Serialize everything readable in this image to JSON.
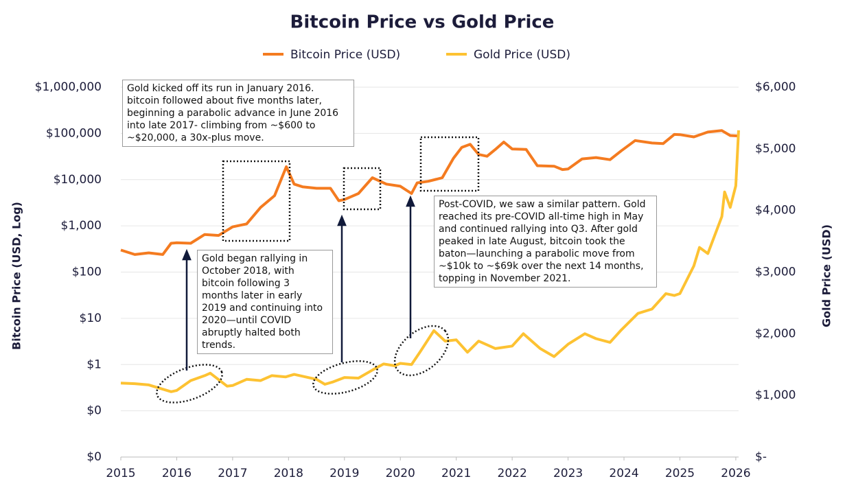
{
  "chart_data": {
    "type": "line",
    "title": "Bitcoin Price vs Gold Price",
    "y_label": "Bitcoin Price (USD, Log)",
    "y2_label": "Gold Price (USD)",
    "y_log": true,
    "grid": true,
    "xlim": [
      2015,
      2026.05
    ],
    "xticks": [
      2015,
      2016,
      2017,
      2018,
      2019,
      2020,
      2021,
      2022,
      2023,
      2024,
      2025,
      2026
    ],
    "ylim": [
      0.01,
      1000000
    ],
    "yticks": [
      {
        "value": 0.01,
        "label": "$0"
      },
      {
        "value": 0.1,
        "label": "$0"
      },
      {
        "value": 1,
        "label": "$1"
      },
      {
        "value": 10,
        "label": "$10"
      },
      {
        "value": 100,
        "label": "$100"
      },
      {
        "value": 1000,
        "label": "$1,000"
      },
      {
        "value": 10000,
        "label": "$10,000"
      },
      {
        "value": 100000,
        "label": "$100,000"
      },
      {
        "value": 1000000,
        "label": "$1,000,000"
      }
    ],
    "y2lim": [
      0,
      6000
    ],
    "y2ticks": [
      {
        "value": 0,
        "label": "$-"
      },
      {
        "value": 1000,
        "label": "$1,000"
      },
      {
        "value": 2000,
        "label": "$2,000"
      },
      {
        "value": 3000,
        "label": "$3,000"
      },
      {
        "value": 4000,
        "label": "$4,000"
      },
      {
        "value": 5000,
        "label": "$5,000"
      },
      {
        "value": 6000,
        "label": "$6,000"
      }
    ],
    "series": [
      {
        "name": "Bitcoin Price (USD)",
        "color": "#f47b20",
        "x": [
          2015.0,
          2015.25,
          2015.5,
          2015.75,
          2015.9,
          2016.0,
          2016.25,
          2016.5,
          2016.75,
          2017.0,
          2017.25,
          2017.5,
          2017.75,
          2017.96,
          2018.1,
          2018.25,
          2018.5,
          2018.75,
          2018.9,
          2019.0,
          2019.25,
          2019.5,
          2019.75,
          2020.0,
          2020.2,
          2020.3,
          2020.5,
          2020.75,
          2020.95,
          2021.1,
          2021.25,
          2021.4,
          2021.55,
          2021.7,
          2021.85,
          2022.0,
          2022.25,
          2022.45,
          2022.75,
          2022.9,
          2023.0,
          2023.25,
          2023.5,
          2023.75,
          2023.95,
          2024.2,
          2024.5,
          2024.7,
          2024.9,
          2025.0,
          2025.25,
          2025.5,
          2025.75,
          2025.9,
          2026.05
        ],
        "values": [
          300,
          240,
          260,
          240,
          420,
          430,
          420,
          650,
          620,
          950,
          1100,
          2500,
          4500,
          19000,
          8000,
          7000,
          6500,
          6500,
          3500,
          3700,
          5000,
          11000,
          8000,
          7200,
          5000,
          8500,
          9200,
          11000,
          29000,
          50000,
          58000,
          35000,
          32000,
          45000,
          65000,
          46000,
          45000,
          20000,
          19500,
          16500,
          17000,
          28000,
          30000,
          27000,
          42000,
          70000,
          62000,
          60000,
          95000,
          94000,
          84000,
          107000,
          115000,
          90000,
          88000
        ]
      },
      {
        "name": "Gold Price (USD)",
        "color": "#fdc232",
        "axis": "y2",
        "x": [
          2015.0,
          2015.25,
          2015.5,
          2015.9,
          2016.0,
          2016.25,
          2016.5,
          2016.6,
          2016.9,
          2017.0,
          2017.25,
          2017.5,
          2017.7,
          2017.95,
          2018.1,
          2018.5,
          2018.65,
          2018.8,
          2019.0,
          2019.25,
          2019.5,
          2019.7,
          2019.9,
          2020.0,
          2020.2,
          2020.35,
          2020.6,
          2020.8,
          2021.0,
          2021.2,
          2021.4,
          2021.7,
          2022.0,
          2022.2,
          2022.5,
          2022.75,
          2023.0,
          2023.3,
          2023.5,
          2023.75,
          2023.95,
          2024.25,
          2024.5,
          2024.75,
          2024.9,
          2025.0,
          2025.25,
          2025.35,
          2025.5,
          2025.75,
          2025.8,
          2025.9,
          2026.0,
          2026.05
        ],
        "values": [
          1200,
          1190,
          1170,
          1060,
          1080,
          1240,
          1320,
          1360,
          1150,
          1160,
          1260,
          1240,
          1320,
          1300,
          1340,
          1260,
          1180,
          1220,
          1290,
          1280,
          1410,
          1510,
          1480,
          1520,
          1500,
          1700,
          2050,
          1880,
          1900,
          1700,
          1880,
          1760,
          1800,
          2000,
          1760,
          1630,
          1830,
          2000,
          1920,
          1860,
          2060,
          2330,
          2400,
          2650,
          2620,
          2650,
          3100,
          3400,
          3300,
          3900,
          4300,
          4050,
          4400,
          5300
        ]
      }
    ],
    "annotations": [
      "Gold kicked off its run in January 2016. bitcoin followed about five months later, beginning a parabolic advance in June 2016 into late 2017- climbing from ~$600 to ~$20,000, a 30x-plus move.",
      "Gold began rallying in October 2018, with bitcoin following  3 months later in early 2019 and continuing into 2020—until COVID abruptly halted both trends.",
      "Post-COVID, we saw a similar pattern. Gold reached its pre-COVID all-time high in May and continued rallying into Q3. After gold peaked in late August, bitcoin took the baton—launching a parabolic move from ~$10k to ~$69k over the next 14 months, topping in November 2021."
    ]
  }
}
